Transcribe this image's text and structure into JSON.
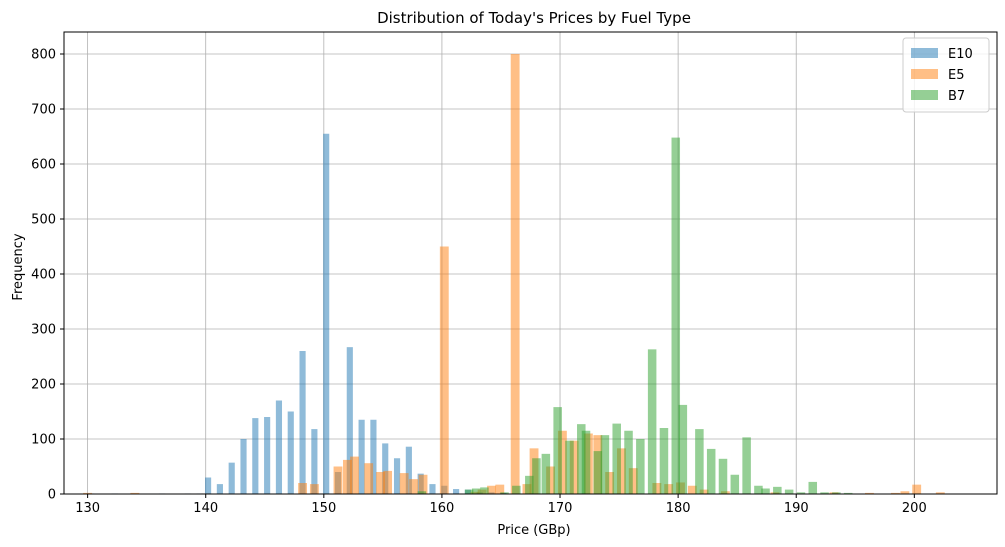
{
  "chart_data": {
    "type": "bar",
    "title": "Distribution of Today's Prices by Fuel Type",
    "xlabel": "Price (GBp)",
    "ylabel": "Frequency",
    "xlim": [
      128,
      207
    ],
    "ylim": [
      0,
      840
    ],
    "xticks": [
      130,
      140,
      150,
      160,
      170,
      180,
      190,
      200
    ],
    "yticks": [
      0,
      100,
      200,
      300,
      400,
      500,
      600,
      700,
      800
    ],
    "grid": true,
    "legend_position": "top-right",
    "series": [
      {
        "name": "E10",
        "color": "#1f77b4",
        "bin_width": 0.52,
        "bins": [
          {
            "x": 130.3,
            "y": 1
          },
          {
            "x": 132.3,
            "y": 1
          },
          {
            "x": 136.3,
            "y": 1
          },
          {
            "x": 138.5,
            "y": 1
          },
          {
            "x": 139.5,
            "y": 1
          },
          {
            "x": 140.2,
            "y": 30
          },
          {
            "x": 141.2,
            "y": 18
          },
          {
            "x": 142.2,
            "y": 57
          },
          {
            "x": 143.2,
            "y": 100
          },
          {
            "x": 144.2,
            "y": 138
          },
          {
            "x": 145.2,
            "y": 140
          },
          {
            "x": 146.2,
            "y": 170
          },
          {
            "x": 147.2,
            "y": 150
          },
          {
            "x": 148.2,
            "y": 260
          },
          {
            "x": 149.2,
            "y": 118
          },
          {
            "x": 150.2,
            "y": 655
          },
          {
            "x": 151.2,
            "y": 40
          },
          {
            "x": 152.2,
            "y": 267
          },
          {
            "x": 153.2,
            "y": 135
          },
          {
            "x": 154.2,
            "y": 135
          },
          {
            "x": 155.2,
            "y": 92
          },
          {
            "x": 156.2,
            "y": 65
          },
          {
            "x": 157.2,
            "y": 86
          },
          {
            "x": 158.2,
            "y": 37
          },
          {
            "x": 159.2,
            "y": 18
          },
          {
            "x": 160.2,
            "y": 15
          },
          {
            "x": 161.2,
            "y": 9
          },
          {
            "x": 162.2,
            "y": 8
          },
          {
            "x": 163.2,
            "y": 3
          },
          {
            "x": 164.2,
            "y": 3
          },
          {
            "x": 165.2,
            "y": 2
          }
        ]
      },
      {
        "name": "E5",
        "color": "#ff7f0e",
        "bin_width": 0.75,
        "bins": [
          {
            "x": 130.0,
            "y": 2
          },
          {
            "x": 134.0,
            "y": 2
          },
          {
            "x": 140.0,
            "y": 1
          },
          {
            "x": 148.2,
            "y": 20
          },
          {
            "x": 149.2,
            "y": 18
          },
          {
            "x": 151.2,
            "y": 50
          },
          {
            "x": 152.0,
            "y": 62
          },
          {
            "x": 152.6,
            "y": 68
          },
          {
            "x": 153.8,
            "y": 56
          },
          {
            "x": 154.8,
            "y": 40
          },
          {
            "x": 155.4,
            "y": 42
          },
          {
            "x": 156.8,
            "y": 38
          },
          {
            "x": 157.6,
            "y": 27
          },
          {
            "x": 158.4,
            "y": 35
          },
          {
            "x": 160.2,
            "y": 450
          },
          {
            "x": 162.8,
            "y": 4
          },
          {
            "x": 163.4,
            "y": 8
          },
          {
            "x": 164.2,
            "y": 15
          },
          {
            "x": 164.9,
            "y": 17
          },
          {
            "x": 166.2,
            "y": 800
          },
          {
            "x": 167.2,
            "y": 18
          },
          {
            "x": 167.8,
            "y": 83
          },
          {
            "x": 169.2,
            "y": 50
          },
          {
            "x": 170.2,
            "y": 115
          },
          {
            "x": 171.2,
            "y": 97
          },
          {
            "x": 172.4,
            "y": 110
          },
          {
            "x": 173.2,
            "y": 107
          },
          {
            "x": 174.2,
            "y": 40
          },
          {
            "x": 175.2,
            "y": 83
          },
          {
            "x": 176.2,
            "y": 47
          },
          {
            "x": 178.2,
            "y": 20
          },
          {
            "x": 179.2,
            "y": 18
          },
          {
            "x": 180.2,
            "y": 21
          },
          {
            "x": 181.2,
            "y": 15
          },
          {
            "x": 182.2,
            "y": 8
          },
          {
            "x": 184.0,
            "y": 5
          },
          {
            "x": 188.2,
            "y": 3
          },
          {
            "x": 193.2,
            "y": 3
          },
          {
            "x": 196.2,
            "y": 2
          },
          {
            "x": 198.4,
            "y": 2
          },
          {
            "x": 199.2,
            "y": 5
          },
          {
            "x": 200.2,
            "y": 17
          },
          {
            "x": 202.2,
            "y": 3
          }
        ]
      },
      {
        "name": "B7",
        "color": "#2ca02c",
        "bin_width": 0.72,
        "bins": [
          {
            "x": 158.3,
            "y": 5
          },
          {
            "x": 162.3,
            "y": 8
          },
          {
            "x": 162.9,
            "y": 10
          },
          {
            "x": 163.6,
            "y": 12
          },
          {
            "x": 165.3,
            "y": 3
          },
          {
            "x": 166.3,
            "y": 15
          },
          {
            "x": 167.4,
            "y": 33
          },
          {
            "x": 168.0,
            "y": 65
          },
          {
            "x": 168.8,
            "y": 73
          },
          {
            "x": 169.8,
            "y": 158
          },
          {
            "x": 170.8,
            "y": 97
          },
          {
            "x": 171.8,
            "y": 127
          },
          {
            "x": 172.2,
            "y": 115
          },
          {
            "x": 173.2,
            "y": 78
          },
          {
            "x": 173.8,
            "y": 107
          },
          {
            "x": 174.8,
            "y": 128
          },
          {
            "x": 175.8,
            "y": 115
          },
          {
            "x": 176.8,
            "y": 100
          },
          {
            "x": 177.8,
            "y": 263
          },
          {
            "x": 178.8,
            "y": 120
          },
          {
            "x": 179.8,
            "y": 648
          },
          {
            "x": 180.4,
            "y": 162
          },
          {
            "x": 181.8,
            "y": 118
          },
          {
            "x": 182.8,
            "y": 82
          },
          {
            "x": 183.8,
            "y": 64
          },
          {
            "x": 184.8,
            "y": 35
          },
          {
            "x": 185.8,
            "y": 103
          },
          {
            "x": 186.8,
            "y": 15
          },
          {
            "x": 187.4,
            "y": 10
          },
          {
            "x": 188.4,
            "y": 13
          },
          {
            "x": 189.4,
            "y": 8
          },
          {
            "x": 190.4,
            "y": 3
          },
          {
            "x": 191.4,
            "y": 22
          },
          {
            "x": 192.4,
            "y": 3
          },
          {
            "x": 193.4,
            "y": 3
          },
          {
            "x": 194.4,
            "y": 2
          }
        ]
      }
    ]
  }
}
